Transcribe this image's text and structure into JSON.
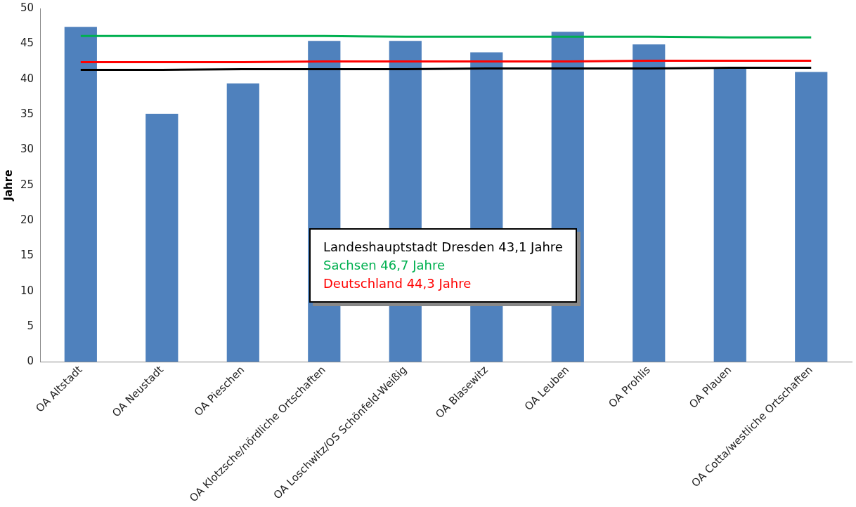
{
  "chart_data": {
    "type": "bar",
    "ylabel": "Jahre",
    "categories": [
      "OA Altstadt",
      "OA Neustadt",
      "OA Pieschen",
      "OA Klotzsche/nördliche Ortschaften",
      "OA Loschwitz/OS Schönfeld-Weißig",
      "OA Blasewitz",
      "OA Leuben",
      "OA Prohlis",
      "OA Plauen",
      "OA Cotta/westliche Ortschaften"
    ],
    "series": [
      {
        "color": "#4f81bd",
        "values": [
          47.4,
          35.1,
          39.4,
          45.4,
          45.4,
          43.8,
          46.7,
          44.9,
          41.6,
          41.0
        ]
      },
      {
        "type": "line",
        "name": "Landeshauptstadt Dresden 43,1 Jahre",
        "color": "#000000",
        "values": [
          41.3,
          41.3,
          41.4,
          41.4,
          41.4,
          41.5,
          41.5,
          41.5,
          41.6,
          41.6
        ]
      },
      {
        "type": "line",
        "name": "Sachsen 46,7 Jahre",
        "color": "#00b050",
        "values": [
          46.1,
          46.1,
          46.1,
          46.1,
          46.0,
          46.0,
          46.0,
          46.0,
          45.9,
          45.9
        ]
      },
      {
        "type": "line",
        "name": "Deutschland 44,3 Jahre",
        "color": "#ff0000",
        "values": [
          42.4,
          42.4,
          42.4,
          42.5,
          42.5,
          42.5,
          42.5,
          42.6,
          42.6,
          42.6
        ]
      }
    ],
    "ylim": [
      0,
      50
    ],
    "yticks": [
      0,
      5,
      10,
      15,
      20,
      25,
      30,
      35,
      40,
      45,
      50
    ],
    "grid": false,
    "legend": "bottom",
    "marker": "none"
  }
}
